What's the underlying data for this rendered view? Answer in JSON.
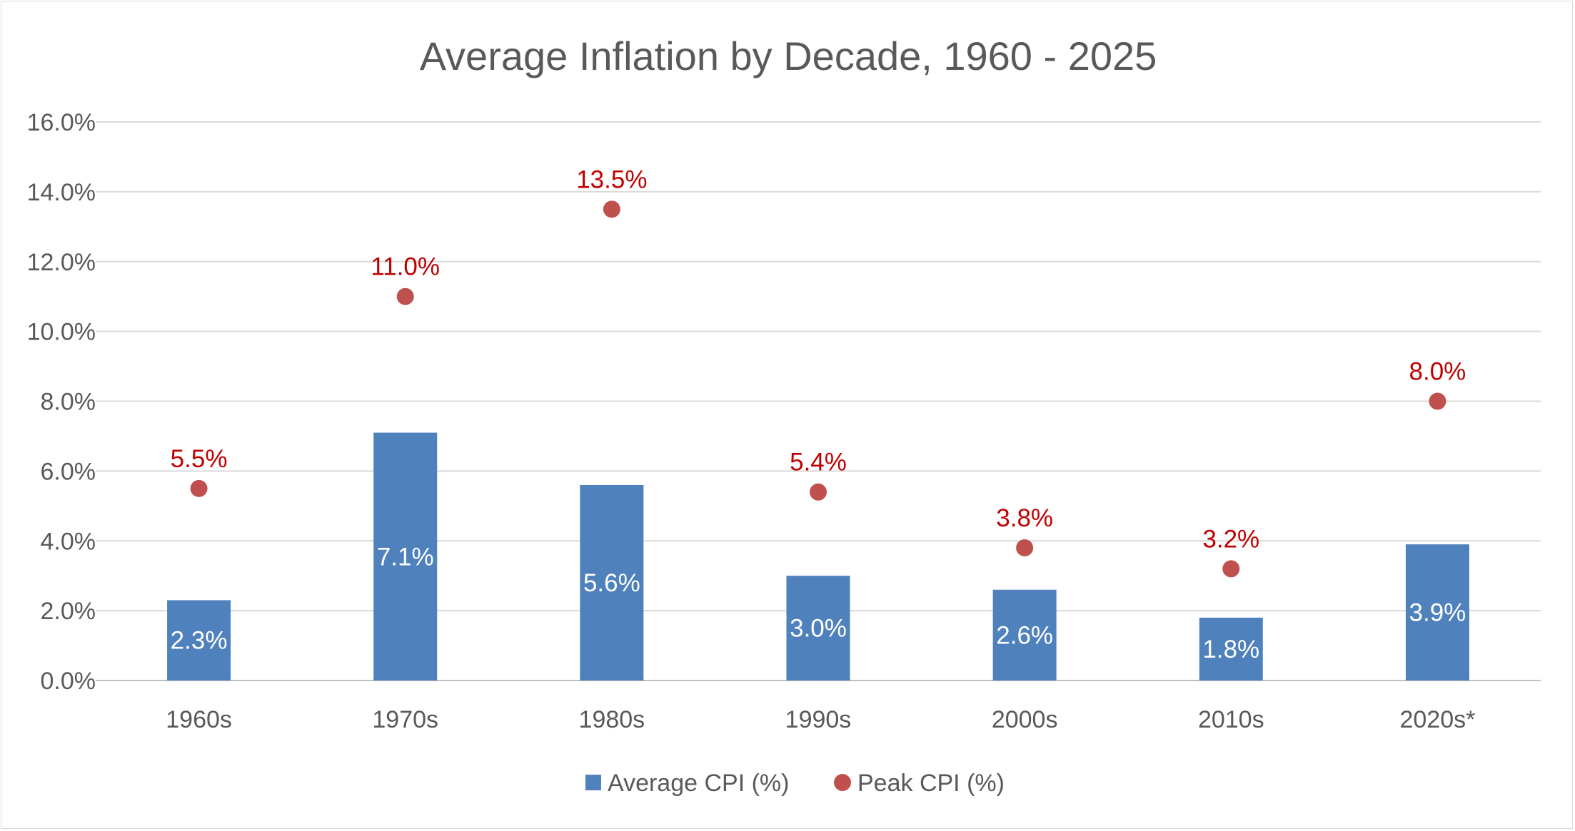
{
  "chart_data": {
    "type": "bar",
    "title": "Average Inflation by Decade, 1960 - 2025",
    "categories": [
      "1960s",
      "1970s",
      "1980s",
      "1990s",
      "2000s",
      "2010s",
      "2020s*"
    ],
    "ylim": [
      0,
      16
    ],
    "yticks": [
      0,
      2,
      4,
      6,
      8,
      10,
      12,
      14,
      16
    ],
    "ytick_labels": [
      "0.0%",
      "2.0%",
      "4.0%",
      "6.0%",
      "8.0%",
      "10.0%",
      "12.0%",
      "14.0%",
      "16.0%"
    ],
    "grid": true,
    "legend_position": "bottom",
    "series": [
      {
        "name": "Average CPI (%)",
        "type": "bar",
        "color": "#4f81bd",
        "values": [
          2.3,
          7.1,
          5.6,
          3.0,
          2.6,
          1.8,
          3.9
        ],
        "labels": [
          "2.3%",
          "7.1%",
          "5.6%",
          "3.0%",
          "2.6%",
          "1.8%",
          "3.9%"
        ]
      },
      {
        "name": "Peak CPI (%)",
        "type": "scatter",
        "color": "#c0504d",
        "label_color": "#c00000",
        "values": [
          5.5,
          11.0,
          13.5,
          5.4,
          3.8,
          3.2,
          8.0
        ],
        "labels": [
          "5.5%",
          "11.0%",
          "13.5%",
          "5.4%",
          "3.8%",
          "3.2%",
          "8.0%"
        ]
      }
    ]
  }
}
